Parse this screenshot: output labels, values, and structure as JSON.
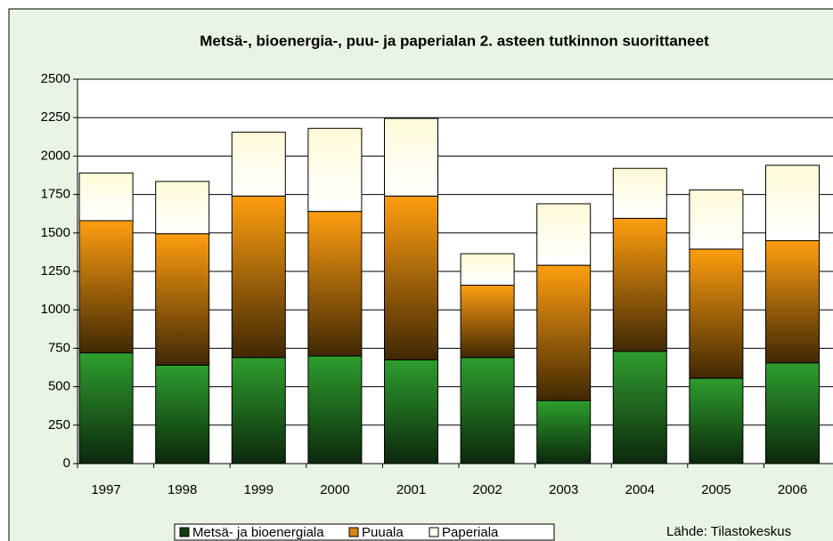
{
  "chart_data": {
    "type": "stacked_bar",
    "title": "Metsä-, bioenergia-, puu- ja paperialan 2. asteen tutkinnon suorittaneet",
    "categories": [
      "1997",
      "1998",
      "1999",
      "2000",
      "2001",
      "2002",
      "2003",
      "2004",
      "2005",
      "2006"
    ],
    "series": [
      {
        "name": "Metsä- ja bioenergiala",
        "color": "#2e9e2e",
        "values": [
          720,
          640,
          690,
          700,
          675,
          690,
          410,
          730,
          555,
          655
        ]
      },
      {
        "name": "Puuala",
        "color": "#ff9e10",
        "values": [
          860,
          855,
          1050,
          940,
          1065,
          470,
          880,
          865,
          840,
          795
        ]
      },
      {
        "name": "Paperiala",
        "color": "#fffbd8",
        "values": [
          310,
          340,
          415,
          540,
          505,
          205,
          400,
          325,
          385,
          490
        ]
      }
    ],
    "ylim": [
      0,
      2500
    ],
    "yticks": [
      0,
      250,
      500,
      750,
      1000,
      1250,
      1500,
      1750,
      2000,
      2250,
      2500
    ],
    "grid": true,
    "source": "Lähde: Tilastokeskus"
  }
}
